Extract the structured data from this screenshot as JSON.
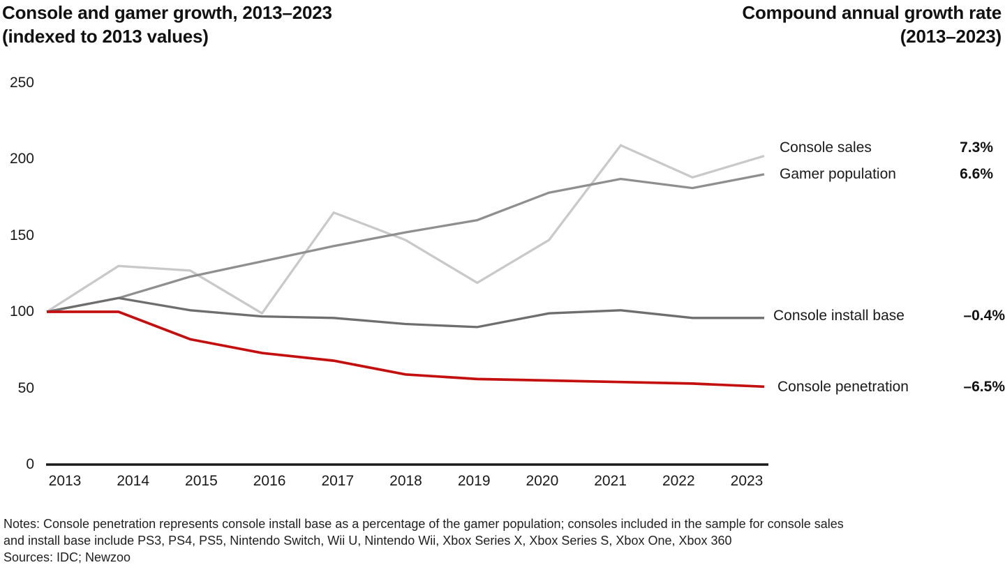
{
  "header": {
    "left_title_line1": "Console and gamer growth, 2013–2023",
    "left_title_line2": "(indexed to 2013 values)",
    "right_title_line1": "Compound annual growth rate",
    "right_title_line2": "(2013–2023)"
  },
  "chart_data": {
    "type": "line",
    "title": "Console and gamer growth, 2013–2023 (indexed to 2013 values)",
    "x": [
      2013,
      2014,
      2015,
      2016,
      2017,
      2018,
      2019,
      2020,
      2021,
      2022,
      2023
    ],
    "y_ticks": [
      250,
      200,
      150,
      100,
      50,
      0
    ],
    "ylim": [
      0,
      250
    ],
    "grid": false,
    "legend_position": "right of line ends, values right-aligned under 'Compound annual growth rate (2013–2023)'",
    "axis_color": "#1a1a1a",
    "series": [
      {
        "name": "Console sales",
        "cagr": "7.3%",
        "color": "#c9c9c9",
        "values": [
          100,
          130,
          127,
          99,
          165,
          147,
          119,
          147,
          209,
          188,
          202
        ]
      },
      {
        "name": "Gamer population",
        "cagr": "6.6%",
        "color": "#8f8f8f",
        "values": [
          100,
          109,
          123,
          133,
          143,
          152,
          160,
          178,
          187,
          181,
          190
        ]
      },
      {
        "name": "Console install base",
        "cagr": "–0.4%",
        "color": "#6e6e6e",
        "values": [
          100,
          109,
          101,
          97,
          96,
          92,
          90,
          99,
          101,
          96,
          96
        ]
      },
      {
        "name": "Console penetration",
        "cagr": "–6.5%",
        "color": "#c40f0f",
        "values": [
          100,
          100,
          82,
          73,
          68,
          59,
          56,
          55,
          54,
          53,
          51
        ]
      }
    ]
  },
  "notes": {
    "line1": "Notes: Console penetration represents console install base as a percentage of the gamer population; consoles included in the sample for console sales",
    "line2": "and install base include PS3, PS4, PS5, Nintendo Switch, Wii U, Nintendo Wii, Xbox Series X, Xbox Series S, Xbox One, Xbox 360",
    "sources": "Sources: IDC; Newzoo"
  }
}
